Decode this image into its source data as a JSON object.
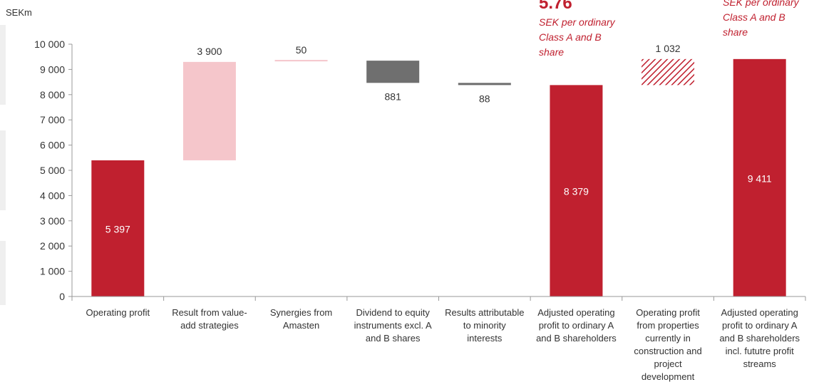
{
  "chart_data": {
    "type": "bar",
    "ylabel": "SEKm",
    "ylim": [
      0,
      10000
    ],
    "yticks": [
      0,
      1000,
      2000,
      3000,
      4000,
      5000,
      6000,
      7000,
      8000,
      9000,
      10000
    ],
    "ytick_labels": [
      "0",
      "1 000",
      "2 000",
      "3 000",
      "4 000",
      "5 000",
      "6 000",
      "7 000",
      "8 000",
      "9 000",
      "10 000"
    ],
    "bars": [
      {
        "category": [
          "Operating profit"
        ],
        "base": 0,
        "top": 5397,
        "label": "5 397",
        "kind": "total"
      },
      {
        "category": [
          "Result from value-",
          "add strategies"
        ],
        "base": 5397,
        "top": 9297,
        "label": "3 900",
        "kind": "increase"
      },
      {
        "category": [
          "Synergies from",
          "Amasten"
        ],
        "base": 9297,
        "top": 9347,
        "label": "50",
        "kind": "increase"
      },
      {
        "category": [
          "Dividend to equity",
          "instruments excl. A",
          "and B shares"
        ],
        "base": 8466,
        "top": 9347,
        "label": "881",
        "kind": "decrease"
      },
      {
        "category": [
          "Results attributable",
          "to minority",
          "interests"
        ],
        "base": 8379,
        "top": 8466,
        "label": "88",
        "kind": "decrease"
      },
      {
        "category": [
          "Adjusted operating",
          "profit to ordinary A",
          "and B shareholders"
        ],
        "base": 0,
        "top": 8379,
        "label": "8 379",
        "kind": "total"
      },
      {
        "category": [
          "Operating profit",
          "from properties",
          "currently in",
          "construction and",
          "project",
          "development"
        ],
        "base": 8379,
        "top": 9411,
        "label": "1 032",
        "kind": "hatched"
      },
      {
        "category": [
          "Adjusted operating",
          "profit to ordinary A",
          "and B shareholders",
          "incl. fututre profit",
          "streams"
        ],
        "base": 0,
        "top": 9411,
        "label": "9 411",
        "kind": "total"
      }
    ],
    "annotations": [
      {
        "value": "5.76",
        "lines": [
          "SEK per ordinary",
          "Class A and B",
          "share"
        ]
      },
      {
        "lines": [
          "SEK per ordinary",
          "Class A and B",
          "share"
        ]
      }
    ],
    "colors": {
      "total": "#c0202f",
      "increase": "#f5c6cb",
      "decrease": "#6f6f6f",
      "hatched": "#c0202f"
    },
    "grid": false
  }
}
